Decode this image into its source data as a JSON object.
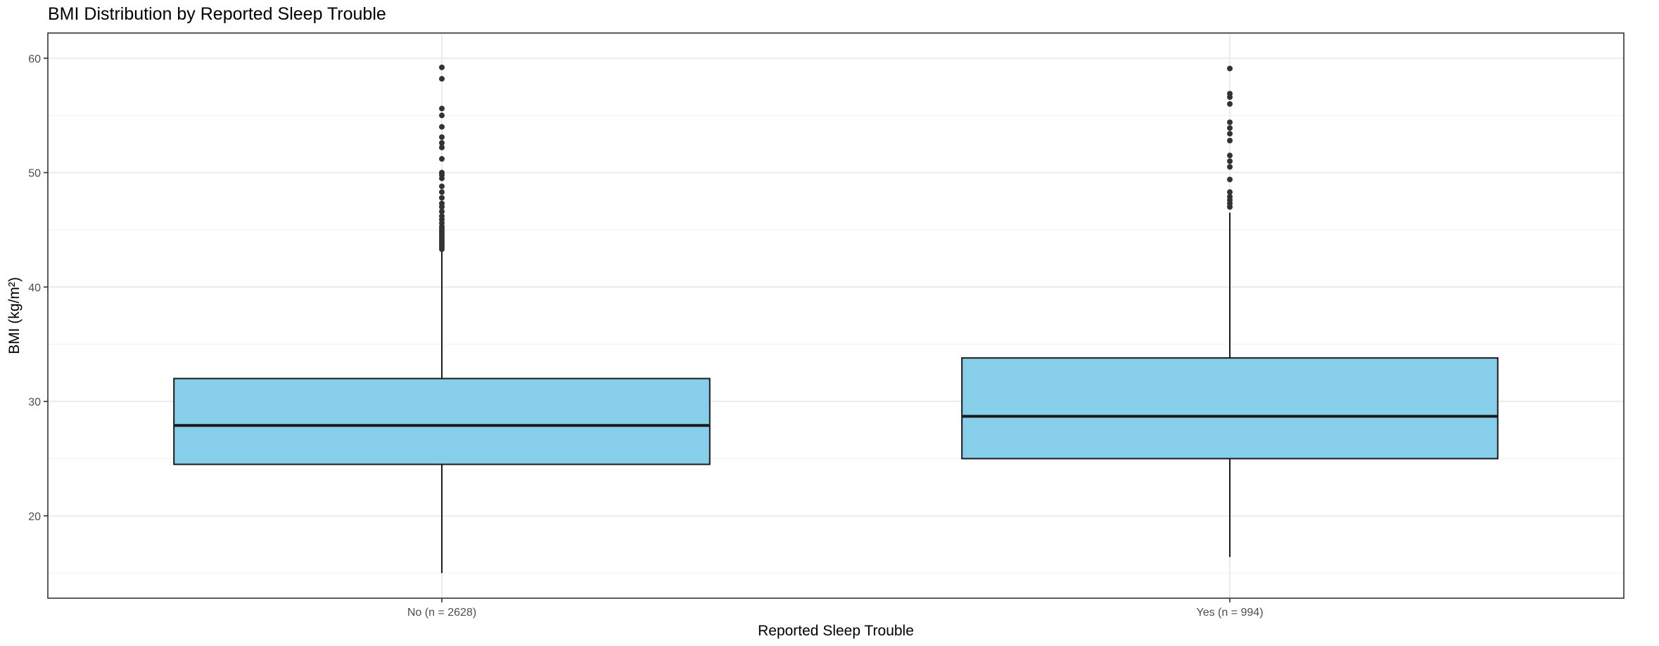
{
  "chart_data": {
    "type": "box",
    "title": "BMI Distribution by Reported Sleep Trouble",
    "xlabel": "Reported Sleep Trouble",
    "ylabel": "BMI (kg/m²)",
    "ylim": [
      12.8,
      62.2
    ],
    "y_ticks": [
      20,
      30,
      40,
      50,
      60
    ],
    "grid": true,
    "colors": {
      "box_fill": "#87CEEB",
      "stroke": "#1a1a1a",
      "outlier": "#333333",
      "grid": "#ebebeb"
    },
    "categories": [
      "No (n = 2628)",
      "Yes (n = 994)"
    ],
    "boxes": [
      {
        "category": "No (n = 2628)",
        "whisker_low": 15.0,
        "q1": 24.5,
        "median": 27.9,
        "q3": 32.0,
        "whisker_high": 43.1,
        "outliers": [
          43.3,
          43.5,
          43.7,
          43.9,
          44.1,
          44.3,
          44.5,
          44.7,
          44.9,
          45.1,
          45.3,
          45.6,
          45.9,
          46.2,
          46.6,
          47.0,
          47.3,
          47.8,
          48.3,
          48.8,
          49.5,
          49.8,
          50.0,
          51.2,
          52.2,
          52.6,
          53.1,
          54.0,
          55.0,
          55.6,
          58.2,
          59.2
        ]
      },
      {
        "category": "Yes (n = 994)",
        "whisker_low": 16.4,
        "q1": 25.0,
        "median": 28.7,
        "q3": 33.8,
        "whisker_high": 46.5,
        "outliers": [
          47.0,
          47.3,
          47.6,
          47.9,
          48.3,
          49.4,
          50.5,
          51.0,
          51.5,
          52.8,
          53.4,
          53.9,
          54.4,
          56.0,
          56.6,
          56.9,
          59.1
        ]
      }
    ]
  }
}
